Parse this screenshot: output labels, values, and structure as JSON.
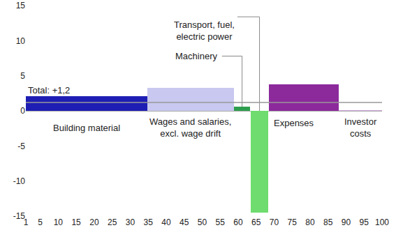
{
  "chart_data": {
    "type": "bar",
    "categories": [
      "Building material",
      "Wages and salaries, excl. wage drift",
      "Machinery",
      "Transport, fuel, electric power",
      "Expenses",
      "Investor costs"
    ],
    "values": [
      2.1,
      3.3,
      0.6,
      -14.5,
      3.8,
      0.1
    ],
    "x_start": [
      1,
      34.7,
      58.8,
      63.5,
      68.6,
      88
    ],
    "x_end": [
      34.7,
      58.8,
      63.4,
      68.4,
      88,
      100
    ],
    "colors": [
      "#1e1eb4",
      "#c8c8f0",
      "#2e9e4e",
      "#6edc6e",
      "#8c2a9c",
      "#d2a6dc"
    ],
    "total": {
      "label": "Total: +1,2",
      "value": 1.2
    },
    "xlim": [
      1,
      100
    ],
    "xticks": [
      1,
      5,
      10,
      15,
      20,
      25,
      30,
      35,
      40,
      45,
      50,
      55,
      60,
      65,
      70,
      75,
      80,
      85,
      90,
      95,
      100
    ],
    "ylim": [
      -15,
      15
    ],
    "yticks": [
      -15,
      -10,
      -5,
      0,
      5,
      10,
      15
    ],
    "grid": false
  }
}
